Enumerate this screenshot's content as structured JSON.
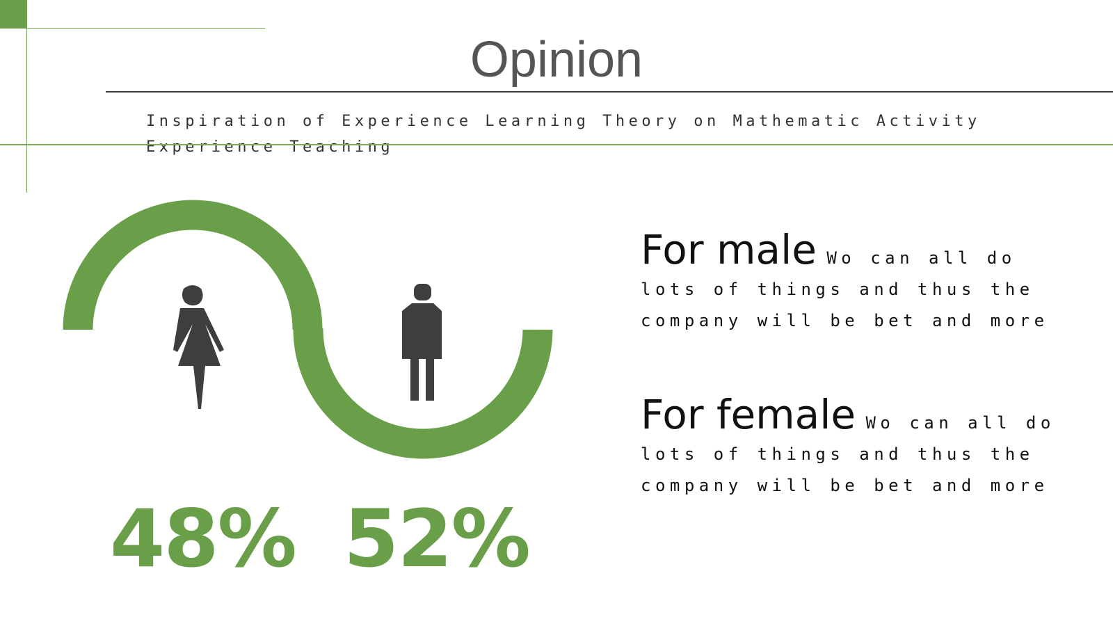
{
  "title": "Opinion",
  "subtitle": "Inspiration of Experience Learning Theory on Mathematic Activity Experience Teaching",
  "colors": {
    "accent": "#6a9f4a",
    "icon": "#3e3e3e",
    "text": "#111111"
  },
  "stats": [
    {
      "icon": "female-icon",
      "value": "48%"
    },
    {
      "icon": "male-icon",
      "value": "52%"
    }
  ],
  "blocks": [
    {
      "heading": "For male",
      "first": "Wo can all do",
      "lines": [
        "lots of things and thus the",
        "company will be bet and more"
      ]
    },
    {
      "heading": "For female",
      "first": "Wo can all do",
      "lines": [
        "lots of things and thus the",
        "company will be bet and more"
      ]
    }
  ]
}
